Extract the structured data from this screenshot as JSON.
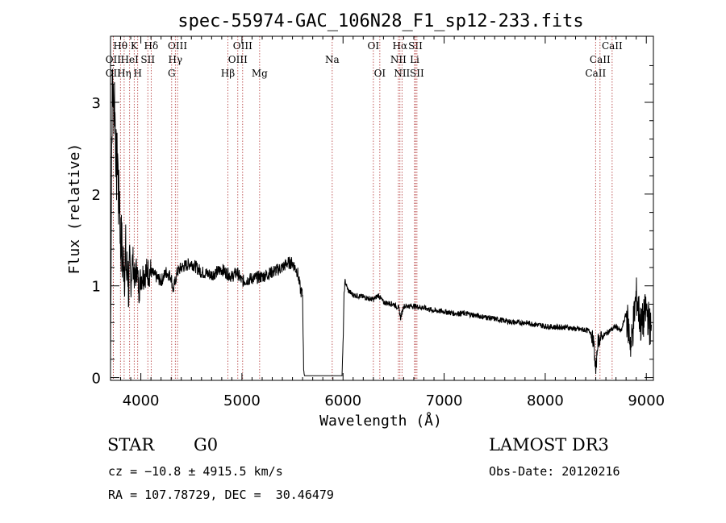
{
  "chart_data": {
    "type": "line",
    "title": "spec-55974-GAC_106N28_F1_sp12-233.fits",
    "xlabel": "Wavelength (Å)",
    "ylabel": "Flux (relative)",
    "xlim": [
      3700,
      9070
    ],
    "ylim": [
      -0.03,
      3.72
    ],
    "xticks": [
      4000,
      5000,
      6000,
      7000,
      8000,
      9000
    ],
    "xtick_labels": [
      "4000",
      "5000",
      "6000",
      "7000",
      "8000",
      "9000"
    ],
    "yticks": [
      0,
      1,
      2,
      3
    ],
    "ytick_labels": [
      "0",
      "1",
      "2",
      "3"
    ],
    "spectral_lines": [
      {
        "label": "Hθ",
        "wavelength": 3798,
        "row": 1
      },
      {
        "label": "OII",
        "wavelength": 3727,
        "row": 2
      },
      {
        "label": "OII",
        "wavelength": 3727,
        "row": 3
      },
      {
        "label": "K",
        "wavelength": 3934,
        "row": 1
      },
      {
        "label": "HeI",
        "wavelength": 3889,
        "row": 2
      },
      {
        "label": "Hη",
        "wavelength": 3835,
        "row": 3
      },
      {
        "label": "Hδ",
        "wavelength": 4102,
        "row": 1
      },
      {
        "label": "SII",
        "wavelength": 4069,
        "row": 2
      },
      {
        "label": "H",
        "wavelength": 3969,
        "row": 3
      },
      {
        "label": "OIII",
        "wavelength": 4363,
        "row": 1
      },
      {
        "label": "Hγ",
        "wavelength": 4341,
        "row": 2
      },
      {
        "label": "G",
        "wavelength": 4305,
        "row": 3
      },
      {
        "label": "OIII",
        "wavelength": 5007,
        "row": 1
      },
      {
        "label": "OIII",
        "wavelength": 4959,
        "row": 2
      },
      {
        "label": "Hβ",
        "wavelength": 4861,
        "row": 3
      },
      {
        "label": "Mg",
        "wavelength": 5175,
        "row": 3
      },
      {
        "label": "Na",
        "wavelength": 5893,
        "row": 2
      },
      {
        "label": "OI",
        "wavelength": 6300,
        "row": 1
      },
      {
        "label": "OI",
        "wavelength": 6364,
        "row": 3
      },
      {
        "label": "Hα",
        "wavelength": 6563,
        "row": 1
      },
      {
        "label": "SII",
        "wavelength": 6716,
        "row": 1
      },
      {
        "label": "NII",
        "wavelength": 6548,
        "row": 2
      },
      {
        "label": "Li",
        "wavelength": 6708,
        "row": 2
      },
      {
        "label": "NII",
        "wavelength": 6583,
        "row": 3
      },
      {
        "label": "SII",
        "wavelength": 6731,
        "row": 3
      },
      {
        "label": "CaII",
        "wavelength": 8662,
        "row": 1
      },
      {
        "label": "CaII",
        "wavelength": 8542,
        "row": 2
      },
      {
        "label": "CaII",
        "wavelength": 8498,
        "row": 3
      }
    ],
    "series": [
      {
        "name": "flux",
        "x": [
          3700,
          3710,
          3720,
          3730,
          3740,
          3750,
          3760,
          3770,
          3780,
          3790,
          3800,
          3810,
          3820,
          3830,
          3840,
          3850,
          3860,
          3870,
          3880,
          3890,
          3900,
          3920,
          3940,
          3960,
          3980,
          4000,
          4050,
          4100,
          4150,
          4200,
          4250,
          4300,
          4320,
          4340,
          4360,
          4400,
          4500,
          4600,
          4700,
          4800,
          4900,
          4950,
          5000,
          5100,
          5200,
          5300,
          5400,
          5450,
          5500,
          5550,
          5580,
          5600,
          5610,
          5620,
          5640,
          5700,
          5800,
          5900,
          5990,
          6000,
          6010,
          6020,
          6050,
          6100,
          6200,
          6300,
          6350,
          6400,
          6500,
          6550,
          6570,
          6600,
          6700,
          6800,
          6900,
          7000,
          7100,
          7200,
          7300,
          7400,
          7500,
          7600,
          7700,
          7800,
          7900,
          8000,
          8100,
          8200,
          8300,
          8400,
          8450,
          8480,
          8500,
          8520,
          8540,
          8560,
          8600,
          8650,
          8700,
          8750,
          8800,
          8850,
          8900,
          8950,
          9000,
          9050
        ],
        "y": [
          0.05,
          2.4,
          3.3,
          2.9,
          3.1,
          2.6,
          2.2,
          2.5,
          1.9,
          2.0,
          1.4,
          1.5,
          1.2,
          1.3,
          1.2,
          1.35,
          1.1,
          1.25,
          0.95,
          1.15,
          1.0,
          1.3,
          1.05,
          1.2,
          0.95,
          1.1,
          1.15,
          1.15,
          1.1,
          1.05,
          1.15,
          1.1,
          0.95,
          1.05,
          1.15,
          1.2,
          1.25,
          1.15,
          1.12,
          1.18,
          1.1,
          1.15,
          1.05,
          1.08,
          1.1,
          1.15,
          1.2,
          1.25,
          1.25,
          1.15,
          0.95,
          0.9,
          0.1,
          0.02,
          0.02,
          0.02,
          0.02,
          0.02,
          0.02,
          0.35,
          0.9,
          1.05,
          0.95,
          0.9,
          0.88,
          0.85,
          0.9,
          0.82,
          0.8,
          0.76,
          0.65,
          0.78,
          0.78,
          0.76,
          0.73,
          0.72,
          0.7,
          0.7,
          0.68,
          0.66,
          0.64,
          0.62,
          0.6,
          0.6,
          0.58,
          0.56,
          0.55,
          0.55,
          0.53,
          0.52,
          0.5,
          0.38,
          0.05,
          0.4,
          0.42,
          0.44,
          0.48,
          0.52,
          0.56,
          0.5,
          0.7,
          0.35,
          0.9,
          0.55,
          0.75,
          0.48
        ]
      }
    ]
  },
  "info": {
    "object_type": "STAR",
    "subclass": "G0",
    "survey": "LAMOST DR3",
    "redshift_line": "cz = −10.8 ± 4915.5 km/s",
    "obs_date_line": "Obs-Date: 20120216",
    "coords_line": "RA = 107.78729, DEC =  30.46479"
  }
}
